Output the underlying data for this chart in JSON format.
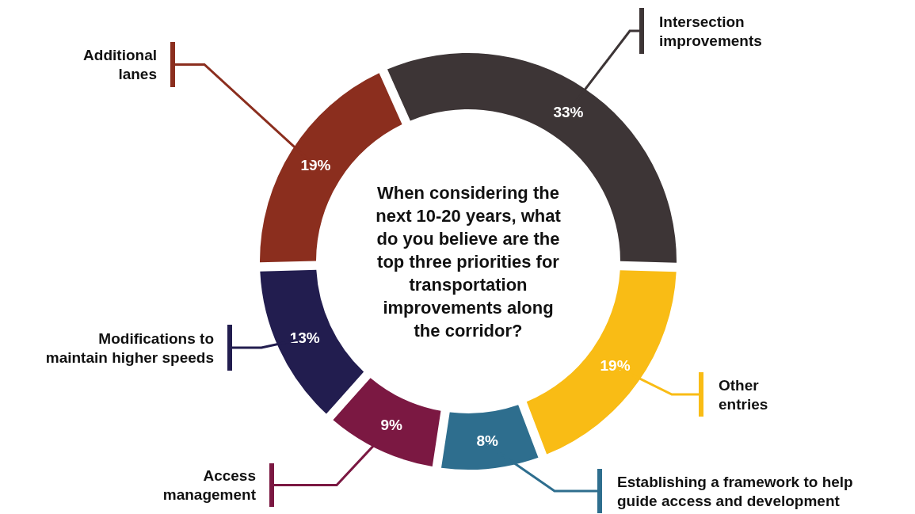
{
  "chart_data": {
    "type": "donut",
    "title": "When considering the next 10-20 years, what do you believe are the top three priorities for transportation improvements along the corridor?",
    "categories": [
      "Intersection improvements",
      "Other entries",
      "Establishing a framework to help guide access and development",
      "Access management",
      "Modifications to maintain higher speeds",
      "Additional lanes"
    ],
    "values": [
      33,
      19,
      8,
      9,
      13,
      19
    ],
    "value_labels": [
      "33%",
      "19%",
      "8%",
      "9%",
      "13%",
      "19%"
    ],
    "colors": [
      "#3d3536",
      "#f9bc15",
      "#2e6e8e",
      "#7b1842",
      "#221d4f",
      "#8b2e1e"
    ]
  }
}
